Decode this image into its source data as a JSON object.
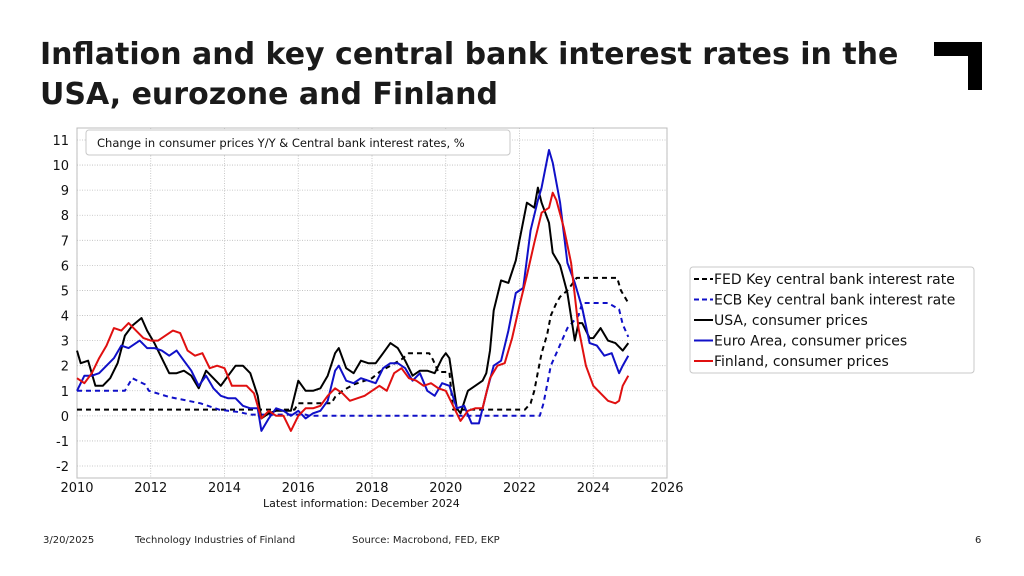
{
  "slide": {
    "title": "Inflation and key central bank interest rates in the USA, eurozone and Finland",
    "latest_info": "Latest information: December 2024",
    "footer_date": "3/20/2025",
    "footer_org": "Technology Industries of Finland",
    "footer_source": "Source: Macrobond, FED, EKP",
    "page_number": "6"
  },
  "chart_data": {
    "type": "line",
    "title": "Change in consumer prices Y/Y & Central bank interest rates, %",
    "xlim": [
      2010,
      2026
    ],
    "ylim": [
      -2,
      11
    ],
    "x_ticks": [
      "2010",
      "2012",
      "2014",
      "2016",
      "2018",
      "2020",
      "2022",
      "2024",
      "2026"
    ],
    "y_ticks": [
      "-2",
      "-1",
      "0",
      "1",
      "2",
      "3",
      "4",
      "5",
      "6",
      "7",
      "8",
      "9",
      "10",
      "11"
    ],
    "grid": true,
    "legend_position": "right",
    "series": [
      {
        "name": "FED Key central bank interest rate",
        "color": "#000000",
        "dash": true,
        "x": [
          2010,
          2015.9,
          2016.0,
          2016.9,
          2017.0,
          2017.2,
          2017.5,
          2018.0,
          2018.2,
          2018.5,
          2018.8,
          2019.0,
          2019.55,
          2019.65,
          2019.8,
          2020.1,
          2020.2,
          2020.3,
          2022.15,
          2022.3,
          2022.4,
          2022.5,
          2022.6,
          2022.75,
          2022.85,
          2023.0,
          2023.1,
          2023.3,
          2023.55,
          2024.65,
          2024.75,
          2024.85,
          2024.95
        ],
        "y": [
          0.25,
          0.25,
          0.5,
          0.5,
          0.75,
          1.0,
          1.25,
          1.5,
          1.75,
          2.0,
          2.25,
          2.5,
          2.5,
          2.25,
          1.75,
          1.75,
          0.25,
          0.25,
          0.25,
          0.5,
          1.0,
          1.75,
          2.5,
          3.25,
          4.0,
          4.5,
          4.75,
          5.0,
          5.5,
          5.5,
          5.0,
          4.75,
          4.5
        ]
      },
      {
        "name": "ECB Key central bank interest rate",
        "color": "#1010c8",
        "dash": true,
        "x": [
          2010,
          2011.3,
          2011.5,
          2011.85,
          2011.95,
          2012.5,
          2013.35,
          2013.85,
          2014.4,
          2014.7,
          2015.0,
          2016.2,
          2016.3,
          2022.55,
          2022.65,
          2022.75,
          2022.85,
          2023.0,
          2023.15,
          2023.3,
          2023.45,
          2023.6,
          2023.7,
          2024.4,
          2024.7,
          2024.8,
          2024.95
        ],
        "y": [
          1.0,
          1.0,
          1.5,
          1.25,
          1.0,
          0.75,
          0.5,
          0.25,
          0.15,
          0.05,
          0.05,
          0.05,
          0.0,
          0.0,
          0.5,
          1.25,
          2.0,
          2.5,
          3.0,
          3.5,
          3.75,
          4.0,
          4.5,
          4.5,
          4.25,
          3.65,
          3.15
        ]
      },
      {
        "name": "USA, consumer prices",
        "color": "#000000",
        "dash": false,
        "x": [
          2010.0,
          2010.1,
          2010.3,
          2010.5,
          2010.7,
          2010.9,
          2011.1,
          2011.3,
          2011.5,
          2011.75,
          2011.9,
          2012.1,
          2012.3,
          2012.5,
          2012.7,
          2012.9,
          2013.1,
          2013.3,
          2013.5,
          2013.7,
          2013.9,
          2014.1,
          2014.3,
          2014.5,
          2014.7,
          2014.9,
          2015.0,
          2015.2,
          2015.4,
          2015.6,
          2015.8,
          2016.0,
          2016.2,
          2016.4,
          2016.6,
          2016.8,
          2017.0,
          2017.1,
          2017.3,
          2017.5,
          2017.7,
          2017.9,
          2018.1,
          2018.3,
          2018.5,
          2018.7,
          2018.9,
          2019.1,
          2019.3,
          2019.5,
          2019.7,
          2019.9,
          2020.0,
          2020.1,
          2020.3,
          2020.4,
          2020.6,
          2020.8,
          2021.0,
          2021.1,
          2021.2,
          2021.3,
          2021.5,
          2021.7,
          2021.9,
          2022.0,
          2022.2,
          2022.4,
          2022.5,
          2022.6,
          2022.8,
          2022.9,
          2023.1,
          2023.3,
          2023.5,
          2023.6,
          2023.7,
          2023.9,
          2024.0,
          2024.2,
          2024.4,
          2024.6,
          2024.8,
          2024.95
        ],
        "y": [
          2.6,
          2.1,
          2.2,
          1.2,
          1.2,
          1.5,
          2.1,
          3.2,
          3.6,
          3.9,
          3.4,
          2.9,
          2.3,
          1.7,
          1.7,
          1.8,
          1.6,
          1.1,
          1.8,
          1.5,
          1.2,
          1.6,
          2.0,
          2.0,
          1.7,
          0.8,
          -0.1,
          0.1,
          0.2,
          0.2,
          0.2,
          1.4,
          1.0,
          1.0,
          1.1,
          1.6,
          2.5,
          2.7,
          1.9,
          1.7,
          2.2,
          2.1,
          2.1,
          2.5,
          2.9,
          2.7,
          2.2,
          1.6,
          1.8,
          1.8,
          1.7,
          2.3,
          2.5,
          2.3,
          0.3,
          0.1,
          1.0,
          1.2,
          1.4,
          1.7,
          2.6,
          4.2,
          5.4,
          5.3,
          6.2,
          7.0,
          8.5,
          8.3,
          9.1,
          8.5,
          7.7,
          6.5,
          6.0,
          4.9,
          3.0,
          3.7,
          3.7,
          3.1,
          3.1,
          3.5,
          3.0,
          2.9,
          2.6,
          2.9
        ]
      },
      {
        "name": "Euro Area, consumer prices",
        "color": "#1010c8",
        "dash": false,
        "x": [
          2010.0,
          2010.2,
          2010.4,
          2010.6,
          2010.8,
          2011.0,
          2011.2,
          2011.4,
          2011.7,
          2011.9,
          2012.1,
          2012.3,
          2012.5,
          2012.7,
          2012.9,
          2013.1,
          2013.3,
          2013.5,
          2013.7,
          2013.9,
          2014.1,
          2014.3,
          2014.5,
          2014.7,
          2014.9,
          2015.0,
          2015.2,
          2015.4,
          2015.6,
          2015.8,
          2016.0,
          2016.2,
          2016.4,
          2016.6,
          2016.8,
          2017.0,
          2017.1,
          2017.3,
          2017.5,
          2017.7,
          2017.9,
          2018.1,
          2018.3,
          2018.5,
          2018.7,
          2018.9,
          2019.1,
          2019.3,
          2019.5,
          2019.7,
          2019.9,
          2020.1,
          2020.3,
          2020.5,
          2020.7,
          2020.9,
          2021.1,
          2021.3,
          2021.5,
          2021.7,
          2021.9,
          2022.1,
          2022.3,
          2022.5,
          2022.6,
          2022.8,
          2022.9,
          2023.1,
          2023.3,
          2023.5,
          2023.7,
          2023.9,
          2024.1,
          2024.3,
          2024.5,
          2024.7,
          2024.8,
          2024.95
        ],
        "y": [
          1.0,
          1.6,
          1.6,
          1.7,
          2.0,
          2.3,
          2.8,
          2.7,
          3.0,
          2.7,
          2.7,
          2.6,
          2.4,
          2.6,
          2.2,
          1.8,
          1.2,
          1.6,
          1.1,
          0.8,
          0.7,
          0.7,
          0.4,
          0.3,
          0.3,
          -0.6,
          -0.1,
          0.3,
          0.2,
          0.0,
          0.2,
          -0.1,
          0.1,
          0.2,
          0.6,
          1.8,
          2.0,
          1.4,
          1.3,
          1.5,
          1.4,
          1.3,
          1.9,
          2.1,
          2.1,
          1.9,
          1.4,
          1.7,
          1.0,
          0.8,
          1.3,
          1.2,
          0.3,
          0.4,
          -0.3,
          -0.3,
          0.9,
          2.0,
          2.2,
          3.4,
          4.9,
          5.1,
          7.4,
          8.6,
          9.1,
          10.6,
          10.1,
          8.5,
          6.1,
          5.3,
          4.3,
          2.9,
          2.8,
          2.4,
          2.5,
          1.7,
          2.0,
          2.4
        ]
      },
      {
        "name": "Finland, consumer prices",
        "color": "#e01010",
        "dash": false,
        "x": [
          2010.0,
          2010.2,
          2010.4,
          2010.6,
          2010.8,
          2011.0,
          2011.2,
          2011.4,
          2011.6,
          2011.8,
          2012.0,
          2012.2,
          2012.4,
          2012.6,
          2012.8,
          2013.0,
          2013.2,
          2013.4,
          2013.6,
          2013.8,
          2014.0,
          2014.2,
          2014.4,
          2014.6,
          2014.8,
          2015.0,
          2015.2,
          2015.4,
          2015.6,
          2015.8,
          2016.0,
          2016.2,
          2016.4,
          2016.6,
          2016.8,
          2017.0,
          2017.2,
          2017.4,
          2017.6,
          2017.8,
          2018.0,
          2018.2,
          2018.4,
          2018.6,
          2018.8,
          2019.0,
          2019.2,
          2019.4,
          2019.6,
          2019.8,
          2020.0,
          2020.2,
          2020.4,
          2020.6,
          2020.8,
          2021.0,
          2021.2,
          2021.4,
          2021.6,
          2021.8,
          2022.0,
          2022.2,
          2022.4,
          2022.6,
          2022.8,
          2022.9,
          2023.0,
          2023.2,
          2023.4,
          2023.6,
          2023.8,
          2024.0,
          2024.2,
          2024.4,
          2024.6,
          2024.7,
          2024.8,
          2024.95
        ],
        "y": [
          1.5,
          1.3,
          1.7,
          2.3,
          2.8,
          3.5,
          3.4,
          3.7,
          3.4,
          3.1,
          3.0,
          3.0,
          3.2,
          3.4,
          3.3,
          2.6,
          2.4,
          2.5,
          1.9,
          2.0,
          1.9,
          1.2,
          1.2,
          1.2,
          0.9,
          -0.1,
          0.2,
          0.0,
          0.0,
          -0.6,
          0.0,
          0.3,
          0.3,
          0.4,
          0.8,
          1.1,
          0.9,
          0.6,
          0.7,
          0.8,
          1.0,
          1.2,
          1.0,
          1.7,
          1.9,
          1.5,
          1.4,
          1.2,
          1.3,
          1.1,
          1.0,
          0.4,
          -0.2,
          0.2,
          0.3,
          0.3,
          1.5,
          2.0,
          2.1,
          3.1,
          4.4,
          5.6,
          6.9,
          8.1,
          8.3,
          8.9,
          8.6,
          7.5,
          6.1,
          3.5,
          2.0,
          1.2,
          0.9,
          0.6,
          0.5,
          0.6,
          1.2,
          1.6
        ]
      }
    ]
  }
}
